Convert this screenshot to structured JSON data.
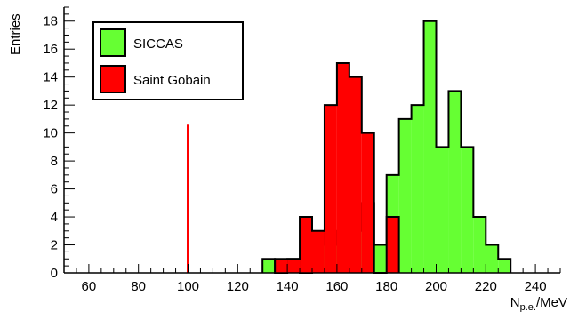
{
  "chart_data": {
    "type": "histogram",
    "xlabel_main": "N",
    "xlabel_sub": "p.e.",
    "xlabel_unit": "/MeV",
    "ylabel": "Entries",
    "xlim": [
      50,
      250
    ],
    "ylim": [
      0,
      19
    ],
    "x_ticks": [
      60,
      80,
      100,
      120,
      140,
      160,
      180,
      200,
      220,
      240
    ],
    "y_ticks": [
      0,
      2,
      4,
      6,
      8,
      10,
      12,
      14,
      16,
      18
    ],
    "bin_width": 5,
    "grid": false,
    "legend_position": "top-left",
    "reference_line": {
      "x": 100,
      "color": "#ff0000"
    },
    "series": [
      {
        "name": "SICCAS",
        "color": "#66ff33",
        "bins": [
          {
            "start": 130,
            "value": 1
          },
          {
            "start": 135,
            "value": 0
          },
          {
            "start": 140,
            "value": 1
          },
          {
            "start": 145,
            "value": 0
          },
          {
            "start": 150,
            "value": 2
          },
          {
            "start": 155,
            "value": 3
          },
          {
            "start": 160,
            "value": 2
          },
          {
            "start": 165,
            "value": 3
          },
          {
            "start": 170,
            "value": 5
          },
          {
            "start": 175,
            "value": 2
          },
          {
            "start": 180,
            "value": 7
          },
          {
            "start": 185,
            "value": 11
          },
          {
            "start": 190,
            "value": 12
          },
          {
            "start": 195,
            "value": 18
          },
          {
            "start": 200,
            "value": 9
          },
          {
            "start": 205,
            "value": 13
          },
          {
            "start": 210,
            "value": 9
          },
          {
            "start": 215,
            "value": 4
          },
          {
            "start": 220,
            "value": 2
          },
          {
            "start": 225,
            "value": 1
          }
        ]
      },
      {
        "name": "Saint Gobain",
        "color": "#ff0000",
        "bins": [
          {
            "start": 135,
            "value": 1
          },
          {
            "start": 140,
            "value": 1
          },
          {
            "start": 145,
            "value": 4
          },
          {
            "start": 150,
            "value": 3
          },
          {
            "start": 155,
            "value": 12
          },
          {
            "start": 160,
            "value": 15
          },
          {
            "start": 165,
            "value": 14
          },
          {
            "start": 170,
            "value": 10
          },
          {
            "start": 175,
            "value": 0
          },
          {
            "start": 180,
            "value": 4
          }
        ]
      }
    ]
  }
}
